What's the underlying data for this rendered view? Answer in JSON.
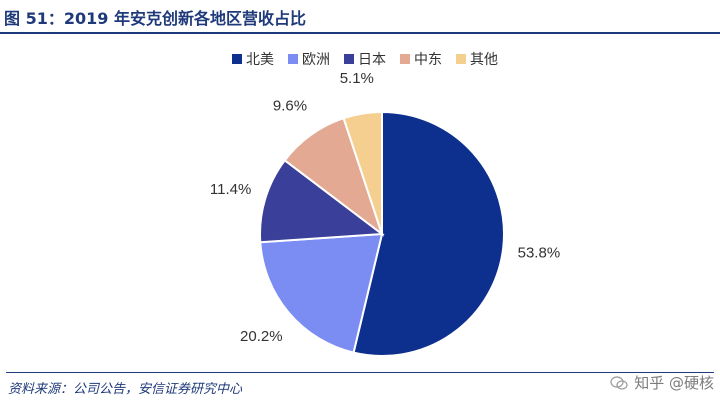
{
  "header": {
    "title": "图 51：2019 年安克创新各地区营收占比"
  },
  "footer": {
    "source": "资料来源：公司公告，安信证券研究中心",
    "watermark": "知乎 @硬核"
  },
  "colors": {
    "accent": "#1f3a7a"
  },
  "chart_data": {
    "type": "pie",
    "title": "",
    "series": [
      {
        "name": "北美",
        "value": 53.8,
        "label": "53.8%",
        "color": "#0d2f8e"
      },
      {
        "name": "欧洲",
        "value": 20.2,
        "label": "20.2%",
        "color": "#7b8cf2"
      },
      {
        "name": "日本",
        "value": 11.4,
        "label": "11.4%",
        "color": "#3a3f9a"
      },
      {
        "name": "中东",
        "value": 9.6,
        "label": "9.6%",
        "color": "#e3a993"
      },
      {
        "name": "其他",
        "value": 5.1,
        "label": "5.1%",
        "color": "#f4cf8f"
      }
    ],
    "legend_position": "top",
    "start": "12 o'clock",
    "direction": "clockwise"
  }
}
